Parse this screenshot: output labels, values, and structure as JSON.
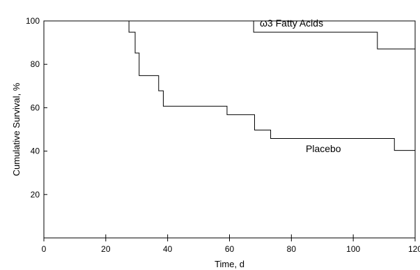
{
  "chart_data": {
    "type": "line",
    "step": true,
    "xlabel": "Time, d",
    "ylabel": "Cumulative Survival, %",
    "xlim": [
      0,
      120
    ],
    "ylim": [
      0,
      100
    ],
    "xticks": [
      0,
      20,
      40,
      60,
      80,
      100,
      120
    ],
    "yticks": [
      20,
      40,
      60,
      80,
      100
    ],
    "grid": false,
    "series": [
      {
        "name": "ω3 Fatty Acids",
        "x": [
          0,
          67.8,
          107.8,
          120
        ],
        "y": [
          100,
          94.8,
          87.1,
          87.1
        ]
      },
      {
        "name": "Placebo",
        "x": [
          0,
          27.5,
          29.5,
          30.8,
          37.1,
          38.6,
          59.2,
          68.1,
          73.3,
          113.3,
          120
        ],
        "y": [
          100,
          94.8,
          85.2,
          74.8,
          67.8,
          60.7,
          56.8,
          49.7,
          45.8,
          40.3,
          40.3
        ]
      }
    ]
  }
}
